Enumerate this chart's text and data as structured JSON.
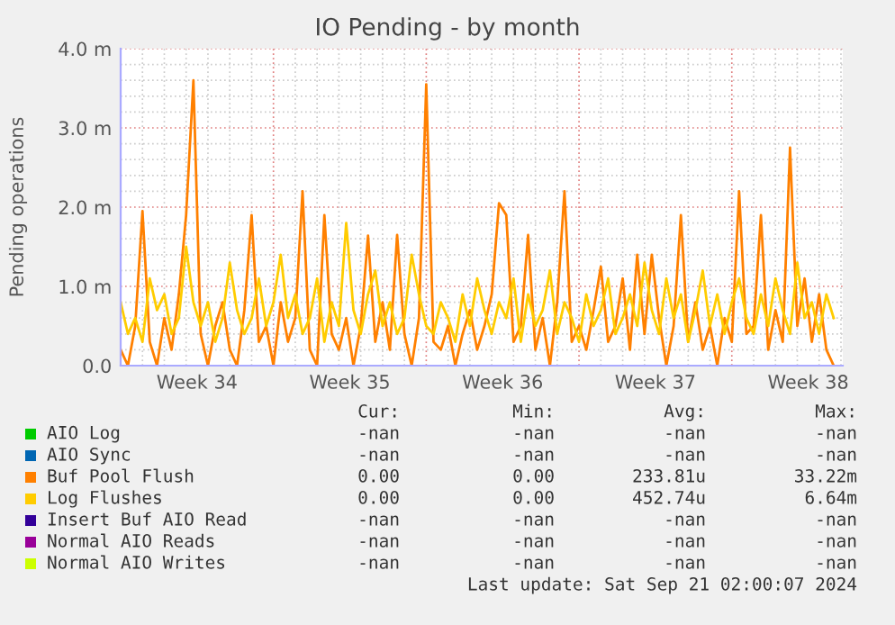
{
  "chart_data": {
    "type": "line",
    "title": "IO Pending - by month",
    "ylabel": "Pending operations",
    "xlim": [
      "2024-08-19",
      "2024-09-21T02:00"
    ],
    "xticks": [
      {
        "value": "2024-08-22T12:00",
        "label": "Week 34"
      },
      {
        "value": "2024-08-29T12:00",
        "label": "Week 35"
      },
      {
        "value": "2024-09-05T12:00",
        "label": "Week 36"
      },
      {
        "value": "2024-09-12T12:00",
        "label": "Week 37"
      },
      {
        "value": "2024-09-19T12:00",
        "label": "Week 38"
      }
    ],
    "ylim": [
      0,
      4
    ],
    "yticks": [
      {
        "value": 0,
        "label": "0.0"
      },
      {
        "value": 1,
        "label": "1.0 m"
      },
      {
        "value": 2,
        "label": "2.0 m"
      },
      {
        "value": 3,
        "label": "3.0 m"
      },
      {
        "value": 4,
        "label": "4.0 m"
      }
    ],
    "grid": true,
    "legend": "bottom",
    "series": [
      {
        "name": "AIO Log",
        "color": "#00cc00",
        "values": [
          null,
          null,
          null,
          null,
          null,
          null,
          null,
          null,
          null,
          null,
          null,
          null,
          null,
          null,
          null,
          null,
          null,
          null,
          null,
          null,
          null,
          null,
          null,
          null,
          null,
          null,
          null,
          null,
          null,
          null,
          null,
          null,
          null,
          null,
          null,
          null,
          null,
          null,
          null,
          null,
          null,
          null,
          null,
          null,
          null,
          null,
          null,
          null,
          null,
          null,
          null,
          null,
          null,
          null,
          null,
          null,
          null,
          null,
          null,
          null,
          null,
          null,
          null,
          null,
          null,
          null,
          null,
          null,
          null,
          null,
          null,
          null,
          null,
          null,
          null,
          null,
          null,
          null,
          null,
          null,
          null,
          null,
          null,
          null,
          null,
          null,
          null,
          null,
          null,
          null,
          null,
          null,
          null,
          null,
          null,
          null,
          null,
          null,
          null
        ]
      },
      {
        "name": "AIO Sync",
        "color": "#0066b3",
        "values": [
          null,
          null,
          null,
          null,
          null,
          null,
          null,
          null,
          null,
          null,
          null,
          null,
          null,
          null,
          null,
          null,
          null,
          null,
          null,
          null,
          null,
          null,
          null,
          null,
          null,
          null,
          null,
          null,
          null,
          null,
          null,
          null,
          null,
          null,
          null,
          null,
          null,
          null,
          null,
          null,
          null,
          null,
          null,
          null,
          null,
          null,
          null,
          null,
          null,
          null,
          null,
          null,
          null,
          null,
          null,
          null,
          null,
          null,
          null,
          null,
          null,
          null,
          null,
          null,
          null,
          null,
          null,
          null,
          null,
          null,
          null,
          null,
          null,
          null,
          null,
          null,
          null,
          null,
          null,
          null,
          null,
          null,
          null,
          null,
          null,
          null,
          null,
          null,
          null,
          null,
          null,
          null,
          null,
          null,
          null,
          null,
          null,
          null,
          null
        ]
      },
      {
        "name": "Buf Pool Flush",
        "color": "#ff8000",
        "values": [
          0.2,
          0,
          0.5,
          1.95,
          0.3,
          0,
          0.6,
          0.2,
          0.9,
          1.9,
          3.6,
          0.4,
          0,
          0.5,
          0.8,
          0.2,
          0,
          0.7,
          1.9,
          0.3,
          0.5,
          0,
          0.8,
          0.3,
          0.6,
          2.2,
          0.2,
          0,
          1.9,
          0.4,
          0.2,
          0.6,
          0,
          0.5,
          1.64,
          0.3,
          0.8,
          0.2,
          1.65,
          0.4,
          0,
          0.6,
          3.55,
          0.3,
          0.2,
          0.5,
          0,
          0.4,
          0.7,
          0.2,
          0.5,
          0.9,
          2.05,
          1.9,
          0.3,
          0.5,
          1.65,
          0.2,
          0.6,
          0,
          0.8,
          2.2,
          0.3,
          0.5,
          0.2,
          0.7,
          1.25,
          0.3,
          0.5,
          1.1,
          0.2,
          1.4,
          0.4,
          1.4,
          0.6,
          0,
          0.5,
          1.9,
          0.3,
          0.8,
          0.2,
          0.5,
          0,
          0.6,
          0.3,
          2.2,
          0.4,
          0.5,
          1.9,
          0.2,
          0.7,
          0.3,
          2.75,
          0.5,
          1.1,
          0.3,
          0.9,
          0.2,
          0
        ]
      },
      {
        "name": "Log Flushes",
        "color": "#ffcc00",
        "values": [
          0.8,
          0.4,
          0.6,
          0.3,
          1.1,
          0.7,
          0.9,
          0.4,
          0.6,
          1.5,
          0.8,
          0.5,
          0.8,
          0.3,
          0.6,
          1.3,
          0.7,
          0.4,
          0.6,
          1.1,
          0.5,
          0.8,
          1.4,
          0.6,
          0.9,
          0.4,
          0.6,
          1.1,
          0.3,
          0.8,
          0.5,
          1.8,
          0.7,
          0.4,
          0.9,
          1.2,
          0.5,
          0.8,
          0.4,
          0.6,
          1.4,
          0.9,
          0.5,
          0.4,
          0.8,
          0.6,
          0.3,
          0.9,
          0.5,
          1.1,
          0.7,
          0.4,
          0.8,
          0.6,
          1.1,
          0.3,
          0.9,
          0.5,
          0.7,
          1.2,
          0.4,
          0.8,
          0.6,
          0.3,
          0.9,
          0.5,
          0.7,
          1.1,
          0.4,
          0.6,
          0.9,
          0.5,
          1.3,
          0.7,
          0.4,
          1.1,
          0.6,
          0.9,
          0.3,
          0.7,
          1.2,
          0.5,
          0.9,
          0.4,
          0.8,
          1.1,
          0.6,
          0.4,
          0.9,
          0.5,
          1.1,
          0.7,
          0.4,
          1.3,
          0.6,
          0.8,
          0.4,
          0.9,
          0.6
        ]
      },
      {
        "name": "Insert Buf AIO Read",
        "color": "#330099",
        "values": [
          null,
          null,
          null,
          null,
          null,
          null,
          null,
          null,
          null,
          null,
          null,
          null,
          null,
          null,
          null,
          null,
          null,
          null,
          null,
          null,
          null,
          null,
          null,
          null,
          null,
          null,
          null,
          null,
          null,
          null,
          null,
          null,
          null,
          null,
          null,
          null,
          null,
          null,
          null,
          null,
          null,
          null,
          null,
          null,
          null,
          null,
          null,
          null,
          null,
          null,
          null,
          null,
          null,
          null,
          null,
          null,
          null,
          null,
          null,
          null,
          null,
          null,
          null,
          null,
          null,
          null,
          null,
          null,
          null,
          null,
          null,
          null,
          null,
          null,
          null,
          null,
          null,
          null,
          null,
          null,
          null,
          null,
          null,
          null,
          null,
          null,
          null,
          null,
          null,
          null,
          null,
          null,
          null,
          null,
          null,
          null,
          null,
          null,
          null
        ]
      },
      {
        "name": "Normal AIO Reads",
        "color": "#990099",
        "values": [
          null,
          null,
          null,
          null,
          null,
          null,
          null,
          null,
          null,
          null,
          null,
          null,
          null,
          null,
          null,
          null,
          null,
          null,
          null,
          null,
          null,
          null,
          null,
          null,
          null,
          null,
          null,
          null,
          null,
          null,
          null,
          null,
          null,
          null,
          null,
          null,
          null,
          null,
          null,
          null,
          null,
          null,
          null,
          null,
          null,
          null,
          null,
          null,
          null,
          null,
          null,
          null,
          null,
          null,
          null,
          null,
          null,
          null,
          null,
          null,
          null,
          null,
          null,
          null,
          null,
          null,
          null,
          null,
          null,
          null,
          null,
          null,
          null,
          null,
          null,
          null,
          null,
          null,
          null,
          null,
          null,
          null,
          null,
          null,
          null,
          null,
          null,
          null,
          null,
          null,
          null,
          null,
          null,
          null,
          null,
          null,
          null,
          null,
          null
        ]
      },
      {
        "name": "Normal AIO Writes",
        "color": "#ccff00",
        "values": [
          null,
          null,
          null,
          null,
          null,
          null,
          null,
          null,
          null,
          null,
          null,
          null,
          null,
          null,
          null,
          null,
          null,
          null,
          null,
          null,
          null,
          null,
          null,
          null,
          null,
          null,
          null,
          null,
          null,
          null,
          null,
          null,
          null,
          null,
          null,
          null,
          null,
          null,
          null,
          null,
          null,
          null,
          null,
          null,
          null,
          null,
          null,
          null,
          null,
          null,
          null,
          null,
          null,
          null,
          null,
          null,
          null,
          null,
          null,
          null,
          null,
          null,
          null,
          null,
          null,
          null,
          null,
          null,
          null,
          null,
          null,
          null,
          null,
          null,
          null,
          null,
          null,
          null,
          null,
          null,
          null,
          null,
          null,
          null,
          null,
          null,
          null,
          null,
          null,
          null,
          null,
          null,
          null,
          null,
          null,
          null,
          null,
          null,
          null
        ]
      }
    ],
    "x": [
      "2024-08-19T00:00",
      "2024-08-19T08:00",
      "2024-08-19T16:00",
      "2024-08-20T00:00",
      "2024-08-20T08:00",
      "2024-08-20T16:00",
      "2024-08-21T00:00",
      "2024-08-21T08:00",
      "2024-08-21T16:00",
      "2024-08-22T00:00",
      "2024-08-22T08:00",
      "2024-08-22T16:00",
      "2024-08-23T00:00",
      "2024-08-23T08:00",
      "2024-08-23T16:00",
      "2024-08-24T00:00",
      "2024-08-24T08:00",
      "2024-08-24T16:00",
      "2024-08-25T00:00",
      "2024-08-25T08:00",
      "2024-08-25T16:00",
      "2024-08-26T00:00",
      "2024-08-26T08:00",
      "2024-08-26T16:00",
      "2024-08-27T00:00",
      "2024-08-27T08:00",
      "2024-08-27T16:00",
      "2024-08-28T00:00",
      "2024-08-28T08:00",
      "2024-08-28T16:00",
      "2024-08-29T00:00",
      "2024-08-29T08:00",
      "2024-08-29T16:00",
      "2024-08-30T00:00",
      "2024-08-30T08:00",
      "2024-08-30T16:00",
      "2024-08-31T00:00",
      "2024-08-31T08:00",
      "2024-08-31T16:00",
      "2024-09-01T00:00",
      "2024-09-01T08:00",
      "2024-09-01T16:00",
      "2024-09-02T00:00",
      "2024-09-02T08:00",
      "2024-09-02T16:00",
      "2024-09-03T00:00",
      "2024-09-03T08:00",
      "2024-09-03T16:00",
      "2024-09-04T00:00",
      "2024-09-04T08:00",
      "2024-09-04T16:00",
      "2024-09-05T00:00",
      "2024-09-05T08:00",
      "2024-09-05T16:00",
      "2024-09-06T00:00",
      "2024-09-06T08:00",
      "2024-09-06T16:00",
      "2024-09-07T00:00",
      "2024-09-07T08:00",
      "2024-09-07T16:00",
      "2024-09-08T00:00",
      "2024-09-08T08:00",
      "2024-09-08T16:00",
      "2024-09-09T00:00",
      "2024-09-09T08:00",
      "2024-09-09T16:00",
      "2024-09-10T00:00",
      "2024-09-10T08:00",
      "2024-09-10T16:00",
      "2024-09-11T00:00",
      "2024-09-11T08:00",
      "2024-09-11T16:00",
      "2024-09-12T00:00",
      "2024-09-12T08:00",
      "2024-09-12T16:00",
      "2024-09-13T00:00",
      "2024-09-13T08:00",
      "2024-09-13T16:00",
      "2024-09-14T00:00",
      "2024-09-14T08:00",
      "2024-09-14T16:00",
      "2024-09-15T00:00",
      "2024-09-15T08:00",
      "2024-09-15T16:00",
      "2024-09-16T00:00",
      "2024-09-16T08:00",
      "2024-09-16T16:00",
      "2024-09-17T00:00",
      "2024-09-17T08:00",
      "2024-09-17T16:00",
      "2024-09-18T00:00",
      "2024-09-18T08:00",
      "2024-09-18T16:00",
      "2024-09-19T00:00",
      "2024-09-19T08:00",
      "2024-09-19T16:00",
      "2024-09-20T00:00",
      "2024-09-20T08:00",
      "2024-09-20T16:00"
    ],
    "annotations": [
      "Cur:",
      "Min:",
      "Avg:",
      "Max:",
      "-nan",
      "-nan",
      "-nan",
      "-nan",
      "-nan",
      "-nan",
      "-nan",
      "-nan",
      "0.00",
      "0.00",
      "233.81u",
      "33.22m",
      "0.00",
      "0.00",
      "452.74u",
      "6.64m",
      "-nan",
      "-nan",
      "-nan",
      "-nan",
      "-nan",
      "-nan",
      "-nan",
      "-nan",
      "-nan",
      "-nan",
      "-nan",
      "-nan",
      "Last update: Sat Sep 21 02:00:07 2024"
    ]
  }
}
